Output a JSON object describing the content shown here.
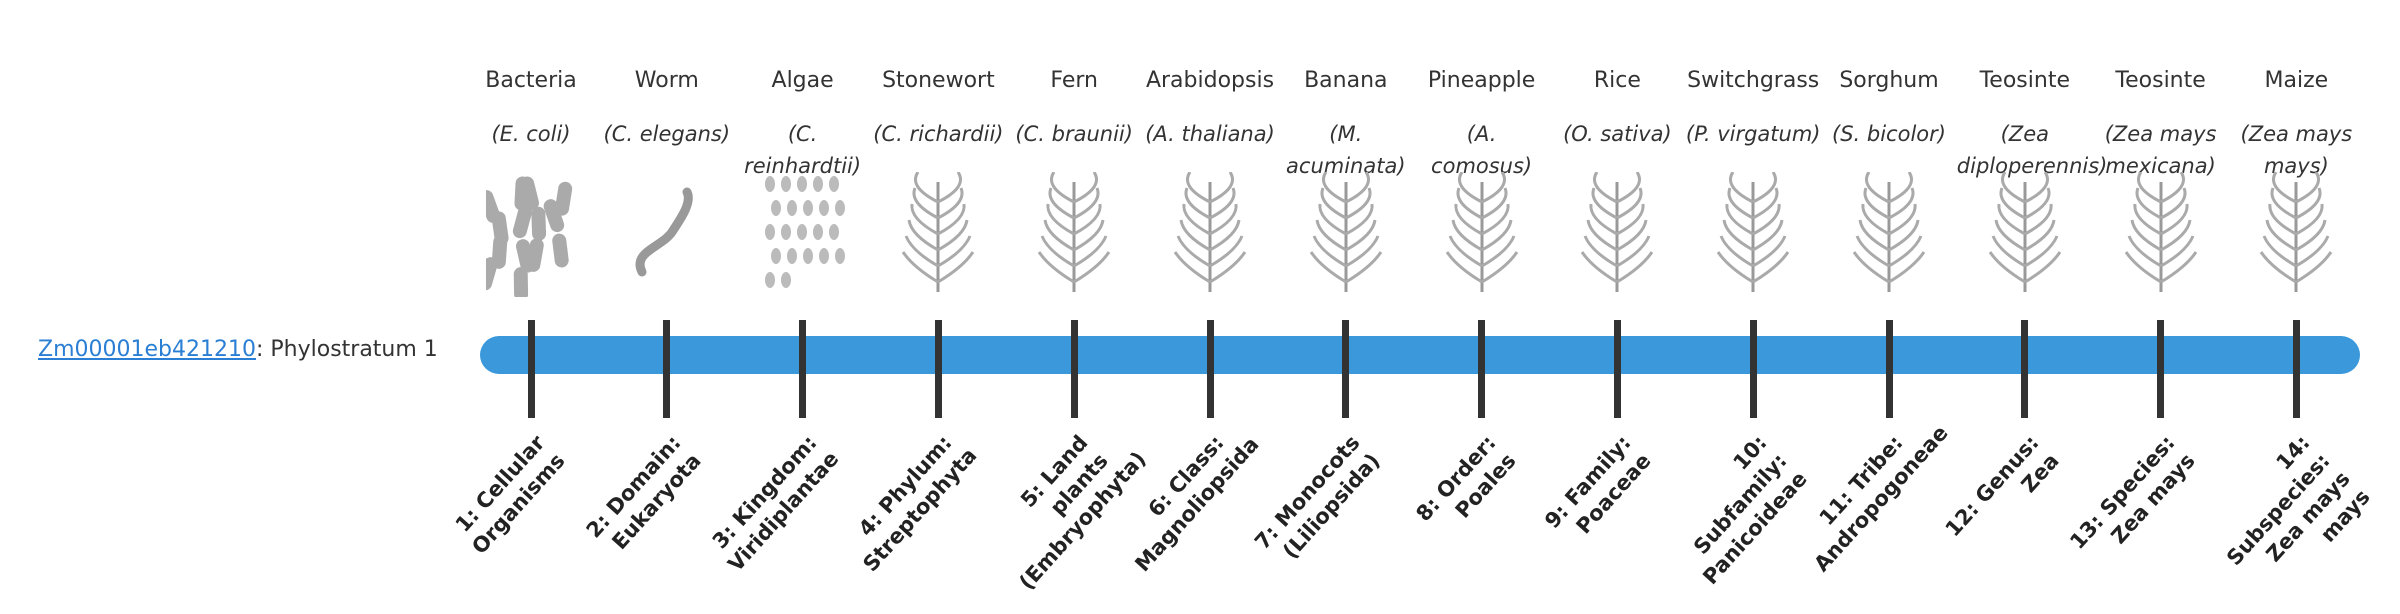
{
  "gene": {
    "id": "Zm00001eb421210",
    "label": ": Phylostratum 1"
  },
  "organisms": [
    {
      "name": "Bacteria",
      "scientific": "(E. coli)",
      "stratum": "1: Cellular Organisms"
    },
    {
      "name": "Worm",
      "scientific": "(C. elegans)",
      "stratum": "2: Domain: Eukaryota"
    },
    {
      "name": "Algae",
      "scientific": "(C. reinhardtii)",
      "stratum": "3: Kingdom: Viridiplantae"
    },
    {
      "name": "Stonewort",
      "scientific": "(C. richardii)",
      "stratum": "4: Phylum: Streptophyta"
    },
    {
      "name": "Fern",
      "scientific": "(C. braunii)",
      "stratum": "5: Land plants (Embryophyta)"
    },
    {
      "name": "Arabidopsis",
      "scientific": "(A. thaliana)",
      "stratum": "6: Class: Magnoliopsida"
    },
    {
      "name": "Banana",
      "scientific": "(M. acuminata)",
      "stratum": "7: Monocots (Liliopsida)"
    },
    {
      "name": "Pineapple",
      "scientific": "(A. comosus)",
      "stratum": "8: Order: Poales"
    },
    {
      "name": "Rice",
      "scientific": "(O. sativa)",
      "stratum": "9: Family: Poaceae"
    },
    {
      "name": "Switchgrass",
      "scientific": "(P. virgatum)",
      "stratum": "10: Subfamily: Panicoideae"
    },
    {
      "name": "Sorghum",
      "scientific": "(S. bicolor)",
      "stratum": "11: Tribe: Andropogoneae"
    },
    {
      "name": "Teosinte",
      "scientific": "(Zea diploperennis)",
      "stratum": "12: Genus: Zea"
    },
    {
      "name": "Teosinte",
      "scientific": "(Zea mays mexicana)",
      "stratum": "13: Species: Zea mays"
    },
    {
      "name": "Maize",
      "scientific": "(Zea mays mays)",
      "stratum": "14: Subspecies: Zea mays mays"
    }
  ]
}
